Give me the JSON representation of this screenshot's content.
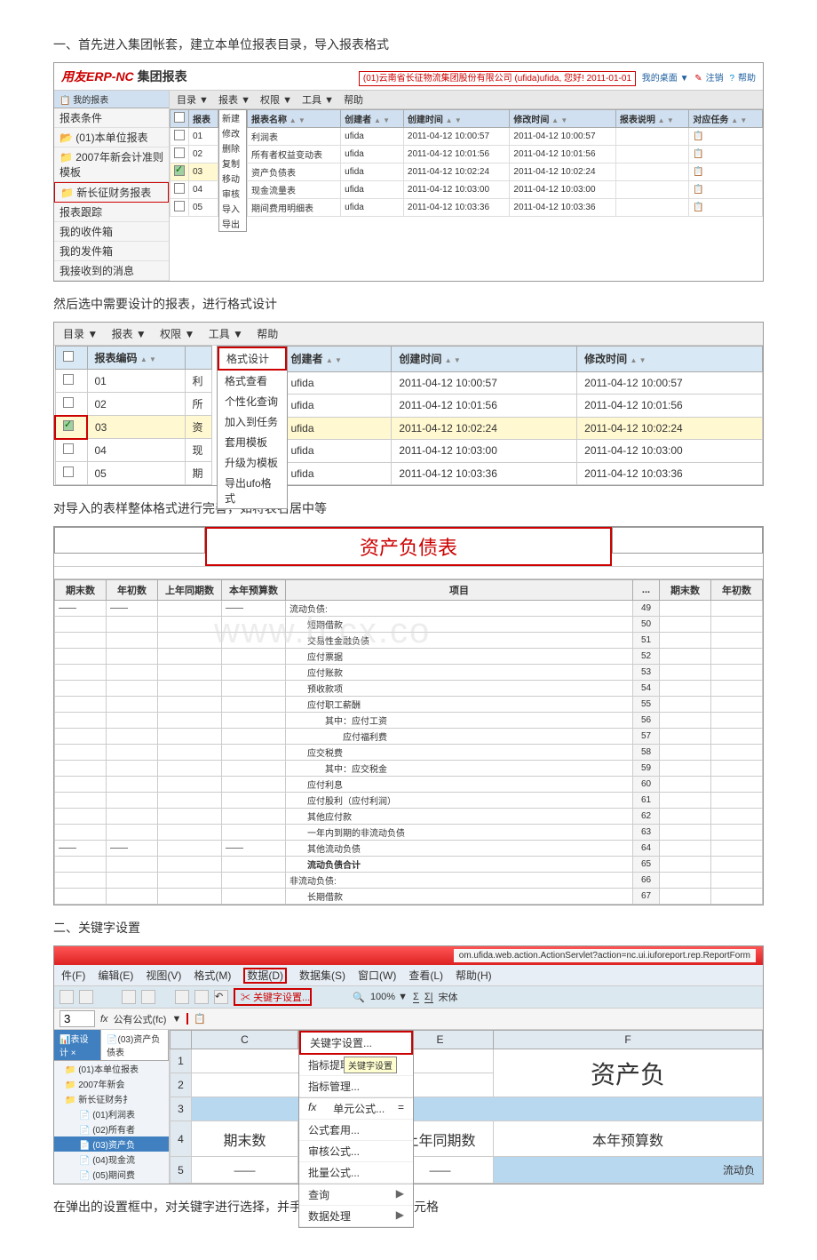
{
  "section1": {
    "title": "一、首先进入集团帐套，建立本单位报表目录，导入报表格式",
    "app_header_logo": "用友ERP-NC",
    "app_header_sub": "集团报表",
    "header_right_red": "(01)云南省长征物流集团股份有限公司 (ufida)ufida, 您好! 2011-01-01",
    "header_links": [
      "我的桌面 ▼",
      "注销",
      "帮助"
    ],
    "my_report_tab": "我的报表",
    "toolbar": [
      "目录 ▼",
      "报表 ▼",
      "权限 ▼",
      "工具 ▼",
      "帮助"
    ],
    "sidebar_items": [
      "报表条件",
      "(01)本单位报表",
      "2007年新会计准则模板",
      "新长征财务报表",
      "报表跟踪",
      "我的收件箱",
      "我的发件箱",
      "我接收到的消息"
    ],
    "sidebar_red_idx": 3,
    "col1_header": "报表",
    "col1_rows": [
      "01",
      "02",
      "03",
      "04",
      "05"
    ],
    "col1_checked_idx": 2,
    "submenu": [
      "新建",
      "修改",
      "删除",
      "复制",
      "移动",
      "审核",
      "导入",
      "导出"
    ],
    "th": [
      "报表名称",
      "创建者",
      "创建时间",
      "修改时间",
      "报表说明",
      "对应任务"
    ],
    "rows": [
      [
        "利润表",
        "ufida",
        "2011-04-12 10:00:57",
        "2011-04-12 10:00:57",
        "",
        ""
      ],
      [
        "所有者权益变动表",
        "ufida",
        "2011-04-12 10:01:56",
        "2011-04-12 10:01:56",
        "",
        ""
      ],
      [
        "资产负债表",
        "ufida",
        "2011-04-12 10:02:24",
        "2011-04-12 10:02:24",
        "",
        ""
      ],
      [
        "现金流量表",
        "ufida",
        "2011-04-12 10:03:00",
        "2011-04-12 10:03:00",
        "",
        ""
      ],
      [
        "期间费用明细表",
        "ufida",
        "2011-04-12 10:03:36",
        "2011-04-12 10:03:36",
        "",
        ""
      ]
    ]
  },
  "caption2": "然后选中需要设计的报表，进行格式设计",
  "section2": {
    "toolbar": [
      "目录 ▼",
      "报表 ▼",
      "权限 ▼",
      "工具 ▼",
      "帮助"
    ],
    "th": [
      "",
      "报表编码"
    ],
    "codes": [
      "01",
      "02",
      "03",
      "04",
      "05"
    ],
    "checked_idx": 2,
    "narrow": [
      "利",
      "所",
      "资",
      "现",
      "期"
    ],
    "submenu": [
      "格式设计",
      "格式查看",
      "个性化查询",
      "加入到任务",
      "套用模板",
      "升级为模板",
      "导出ufo格式"
    ],
    "th2": [
      "创建者",
      "创建时间",
      "修改时间"
    ],
    "rows": [
      [
        "ufida",
        "2011-04-12 10:00:57",
        "2011-04-12 10:00:57"
      ],
      [
        "ufida",
        "2011-04-12 10:01:56",
        "2011-04-12 10:01:56"
      ],
      [
        "ufida",
        "2011-04-12 10:02:24",
        "2011-04-12 10:02:24"
      ],
      [
        "ufida",
        "2011-04-12 10:03:00",
        "2011-04-12 10:03:00"
      ],
      [
        "ufida",
        "2011-04-12 10:03:36",
        "2011-04-12 10:03:36"
      ]
    ]
  },
  "caption3": "对导入的表样整体格式进行完善，如将表名居中等",
  "section3": {
    "title": "资产负债表",
    "th": [
      "期末数",
      "年初数",
      "上年同期数",
      "本年预算数",
      "项目",
      "...",
      "期末数",
      "年初数"
    ],
    "items": [
      {
        "name": "流动负债:",
        "num": 49
      },
      {
        "name": "短期借款",
        "num": 50,
        "indent": 1
      },
      {
        "name": "交易性金融负债",
        "num": 51,
        "indent": 1
      },
      {
        "name": "应付票据",
        "num": 52,
        "indent": 1
      },
      {
        "name": "应付账款",
        "num": 53,
        "indent": 1
      },
      {
        "name": "预收款项",
        "num": 54,
        "indent": 1
      },
      {
        "name": "应付职工薪酬",
        "num": 55,
        "indent": 1
      },
      {
        "name": "其中：应付工资",
        "num": 56,
        "indent": 2
      },
      {
        "name": "应付福利费",
        "num": 57,
        "indent": 3
      },
      {
        "name": "应交税费",
        "num": 58,
        "indent": 1
      },
      {
        "name": "其中：应交税金",
        "num": 59,
        "indent": 2
      },
      {
        "name": "应付利息",
        "num": 60,
        "indent": 1
      },
      {
        "name": "应付股利（应付利润）",
        "num": 61,
        "indent": 1
      },
      {
        "name": "其他应付款",
        "num": 62,
        "indent": 1
      },
      {
        "name": "一年内到期的非流动负债",
        "num": 63,
        "indent": 1
      },
      {
        "name": "其他流动负债",
        "num": 64,
        "indent": 1
      },
      {
        "name": "流动负债合计",
        "num": 65,
        "indent": 1,
        "bold": true
      },
      {
        "name": "非流动负债:",
        "num": 66
      },
      {
        "name": "长期借款",
        "num": 67,
        "indent": 1
      }
    ],
    "watermark": "www.b    cx.co"
  },
  "caption4": "二、关键字设置",
  "section4": {
    "url": "om.ufida.web.action.ActionServlet?action=nc.ui.iuforeport.rep.ReportForm",
    "menu": [
      "件(F)",
      "编辑(E)",
      "视图(V)",
      "格式(M)",
      "数据(D)",
      "数据集(S)",
      "窗口(W)",
      "查看(L)",
      "帮助(H)"
    ],
    "menu_red_idx": 4,
    "toolbar_zoom": "100%",
    "toolbar_font": "宋体",
    "fx_cell": "3",
    "fx_label": "公有公式(fc)",
    "tab_active": "(03)资产负债表",
    "tab_other": "表设计",
    "tree": [
      "(01)本单位报表",
      "2007年新会",
      "新长征财务扌",
      "(01)利润表",
      "(02)所有者",
      "(03)资产负",
      "(04)现金流",
      "(05)期间费"
    ],
    "tree_selected_idx": 5,
    "submenu": [
      {
        "label": "关键字设置...",
        "red": true
      },
      {
        "label": "指标提取",
        "tooltip": "关键字设置"
      },
      {
        "label": "指标管理..."
      },
      {
        "sep": true
      },
      {
        "label": "单元公式...",
        "prefix": "fx",
        "suffix": "="
      },
      {
        "label": "公式套用..."
      },
      {
        "label": "审核公式..."
      },
      {
        "label": "批量公式..."
      },
      {
        "sep": true
      },
      {
        "label": "查询",
        "arrow": true
      },
      {
        "label": "数据处理",
        "arrow": true
      }
    ],
    "grid_cols": [
      "C",
      "",
      "E",
      "F"
    ],
    "grid_title": "资产负",
    "grid_headers": [
      "期末数",
      "上年同期数",
      "本年预算数"
    ],
    "grid_row5": "流动负",
    "grid_dash": "——"
  },
  "caption5": "在弹出的设置框中，对关键字进行选择，并手工设置需要显示的单元格"
}
